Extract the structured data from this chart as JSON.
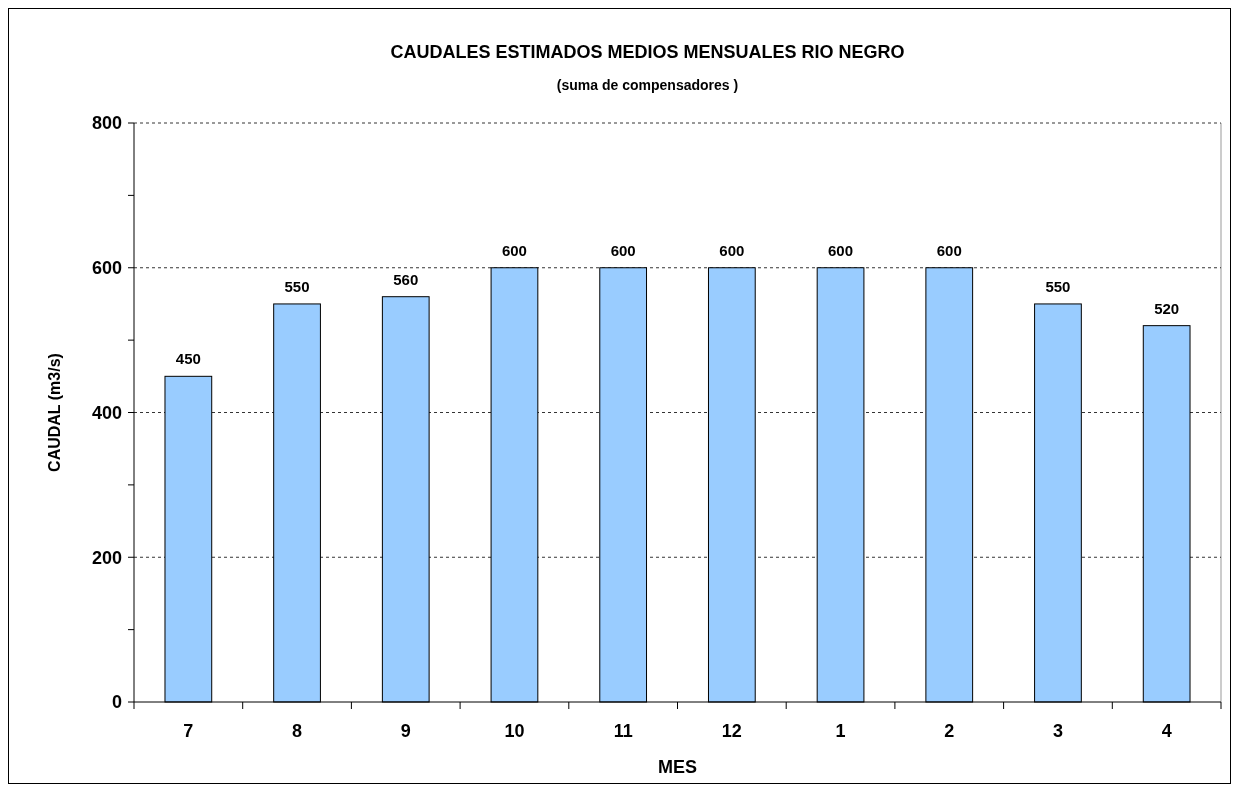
{
  "chart_data": {
    "type": "bar",
    "title": "CAUDALES ESTIMADOS MEDIOS MENSUALES RIO NEGRO",
    "subtitle": "(suma de compensadores )",
    "xlabel": "MES",
    "ylabel": "CAUDAL (m3/s)",
    "categories": [
      "7",
      "8",
      "9",
      "10",
      "11",
      "12",
      "1",
      "2",
      "3",
      "4"
    ],
    "values": [
      450,
      550,
      560,
      600,
      600,
      600,
      600,
      600,
      550,
      520
    ],
    "color": "#99ccff",
    "ylim": [
      0,
      800
    ],
    "yticks": [
      0,
      {
        "value": 100,
        "label": null
      },
      200,
      {
        "value": 300,
        "label": null
      },
      400,
      {
        "value": 500,
        "label": null
      },
      600,
      {
        "value": 700,
        "label": null
      },
      800
    ],
    "grid": "y",
    "data_labels": true
  }
}
